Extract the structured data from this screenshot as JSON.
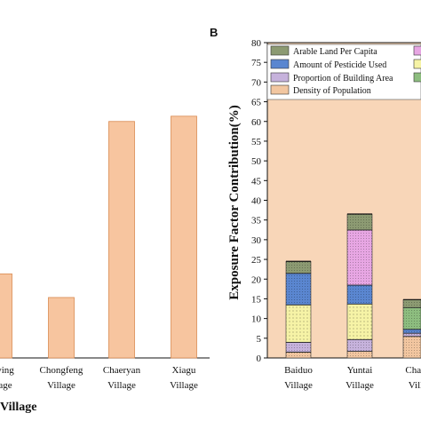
{
  "chart_data": [
    {
      "type": "bar",
      "panel": "A",
      "categories": [
        "Nanying\nVillage",
        "Chongfeng\nVillage",
        "Chaeryan\nVillage",
        "Xiagu\nVillage"
      ],
      "category_labels_visible": [
        "ying\nage",
        "Chongfeng\nVillage",
        "Chaeryan\nVillage",
        "Xiagu\nVillage"
      ],
      "values": [
        16,
        11.5,
        45,
        46
      ],
      "ylim": [
        0,
        60
      ],
      "xlabel": "Village",
      "ylabel": "",
      "bar_color": "#f7c59f",
      "bar_stroke": "#d98a50"
    },
    {
      "type": "bar",
      "stacked": true,
      "panel": "B",
      "panel_label": "B",
      "categories": [
        "Baiduo\nVillage",
        "Yuntai\nVillage",
        "Chao\nVill"
      ],
      "ylabel": "Exposure Factor Contribution(%)",
      "ylim": [
        0,
        80
      ],
      "yticks": [
        0,
        5,
        10,
        15,
        20,
        25,
        30,
        35,
        40,
        45,
        50,
        55,
        60,
        65,
        70,
        75,
        80
      ],
      "background_color": "#f8d6b8",
      "legend_placement": "top",
      "series": [
        {
          "name": "Density of Population",
          "color": "#f2c6a0",
          "pattern": "dense",
          "values": [
            1.5,
            1.7,
            5.5
          ]
        },
        {
          "name": "Proportion of Building Area",
          "color": "#c6b2dc",
          "pattern": "dense",
          "values": [
            2.5,
            3.0,
            0.8
          ]
        },
        {
          "name": "",
          "color": "#f6f3a6",
          "pattern": "dots",
          "values": [
            9.5,
            9.0,
            0.0
          ]
        },
        {
          "name": "Amount of Pesticide Used",
          "color": "#5a86d0",
          "pattern": "dense",
          "values": [
            8.0,
            4.8,
            1.0
          ]
        },
        {
          "name": "",
          "color": "#e7a6e3",
          "pattern": "dense",
          "values": [
            0.0,
            14.0,
            0.0
          ]
        },
        {
          "name": "",
          "color": "#8dbd7f",
          "pattern": "dense",
          "values": [
            0.0,
            0.0,
            5.5
          ]
        },
        {
          "name": "Arable Land Per Capita",
          "color": "#8c9a72",
          "pattern": "dense",
          "values": [
            3.0,
            4.0,
            2.0
          ]
        }
      ]
    }
  ]
}
